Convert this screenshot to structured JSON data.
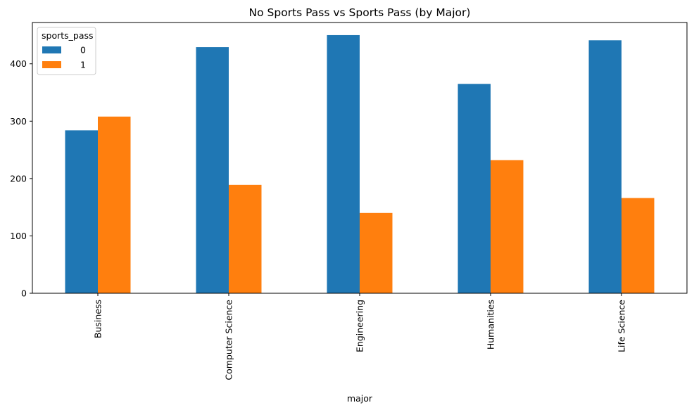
{
  "chart_data": {
    "type": "bar",
    "title": "No Sports Pass vs Sports Pass (by Major)",
    "xlabel": "major",
    "ylabel": "",
    "categories": [
      "Business",
      "Computer Science",
      "Engineering",
      "Humanities",
      "Life Science"
    ],
    "series": [
      {
        "name": "0",
        "values": [
          284,
          429,
          450,
          365,
          441
        ],
        "color": "#1f77b4"
      },
      {
        "name": "1",
        "values": [
          308,
          189,
          140,
          232,
          166
        ],
        "color": "#ff7f0e"
      }
    ],
    "ylim": [
      0,
      472
    ],
    "yticks": [
      0,
      100,
      200,
      300,
      400
    ],
    "legend": {
      "title": "sports_pass",
      "placement": "top-left"
    },
    "grid": false
  }
}
